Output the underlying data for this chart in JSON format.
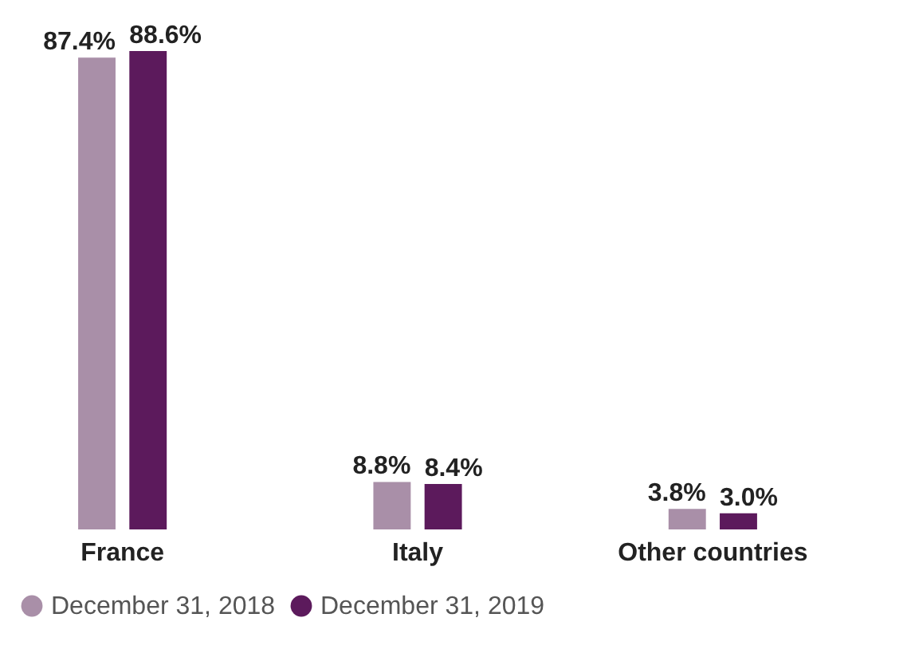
{
  "chart_data": {
    "type": "bar",
    "categories": [
      "France",
      "Italy",
      "Other countries"
    ],
    "series": [
      {
        "name": "December 31, 2018",
        "color": "#a98fa8",
        "values": [
          87.4,
          8.8,
          3.8
        ],
        "value_labels": [
          "87.4%",
          "8.8%",
          "3.8%"
        ]
      },
      {
        "name": "December 31, 2019",
        "color": "#5c1a5c",
        "values": [
          88.6,
          8.4,
          3.0
        ],
        "value_labels": [
          "88.6%",
          "8.4%",
          "3.0%"
        ]
      }
    ],
    "legend": "bottom",
    "grid": false
  }
}
